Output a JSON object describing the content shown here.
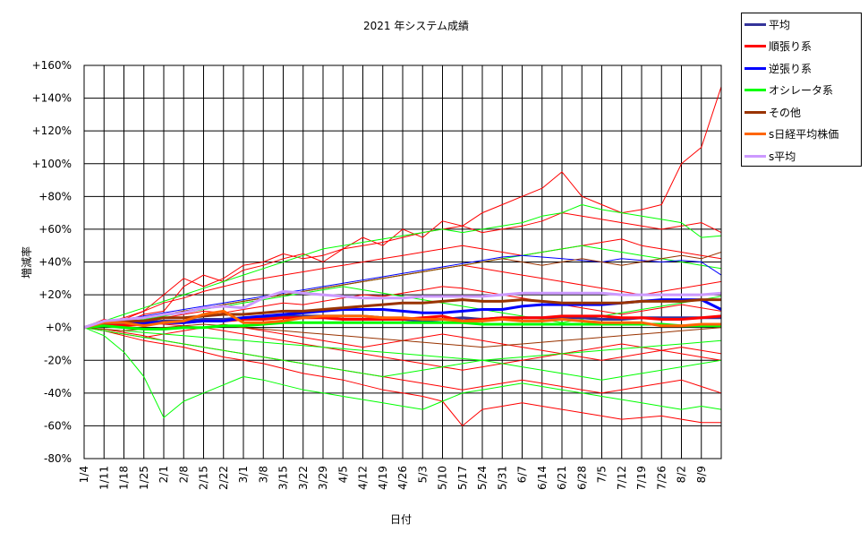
{
  "chart_data": {
    "type": "line",
    "title": "2021 年システム成績",
    "xlabel": "日付",
    "ylabel": "増減率",
    "ylim": [
      -80,
      160
    ],
    "y_ticks": [
      "+160%",
      "+140%",
      "+120%",
      "+100%",
      "+80%",
      "+60%",
      "+40%",
      "+20%",
      "+0%",
      "-20%",
      "-40%",
      "-60%",
      "-80%"
    ],
    "x_tick_labels": [
      "1/4",
      "1/11",
      "1/18",
      "1/25",
      "2/1",
      "2/8",
      "2/15",
      "2/22",
      "3/1",
      "3/8",
      "3/15",
      "3/22",
      "3/29",
      "4/5",
      "4/12",
      "4/19",
      "4/26",
      "5/3",
      "5/10",
      "5/17",
      "5/24",
      "5/31",
      "6/7",
      "6/14",
      "6/21",
      "6/28",
      "7/5",
      "7/12",
      "7/19",
      "7/26",
      "8/2",
      "8/9"
    ],
    "grid": true,
    "legend_position": "right-top",
    "series": [
      {
        "name": "平均",
        "color": "#33339a",
        "key": true,
        "values": [
          0,
          2,
          3,
          3,
          4,
          4,
          5,
          5,
          6,
          6,
          7,
          7,
          7,
          7,
          7,
          6,
          5,
          4,
          5,
          6,
          5,
          6,
          6,
          6,
          6,
          6,
          5,
          5,
          6,
          6,
          6,
          6,
          6
        ]
      },
      {
        "name": "順張り系",
        "color": "#ff0000",
        "key": true,
        "values": [
          0,
          2,
          1,
          2,
          3,
          3,
          4,
          4,
          5,
          5,
          6,
          6,
          6,
          5,
          5,
          5,
          5,
          6,
          7,
          4,
          5,
          6,
          6,
          6,
          7,
          7,
          7,
          6,
          6,
          5,
          5,
          6,
          7
        ]
      },
      {
        "name": "逆張り系",
        "color": "#0000ff",
        "key": true,
        "values": [
          0,
          3,
          3,
          3,
          3,
          3,
          4,
          4,
          6,
          7,
          8,
          9,
          10,
          11,
          11,
          11,
          10,
          9,
          9,
          10,
          11,
          11,
          13,
          14,
          14,
          14,
          14,
          15,
          16,
          17,
          17,
          17,
          11
        ]
      },
      {
        "name": "オシレータ系",
        "color": "#00ff00",
        "key": true,
        "values": [
          0,
          1,
          0,
          -1,
          -1,
          0,
          0,
          1,
          1,
          2,
          3,
          3,
          3,
          3,
          3,
          3,
          3,
          3,
          3,
          3,
          2,
          2,
          2,
          2,
          2,
          2,
          2,
          2,
          2,
          2,
          1,
          1,
          1
        ]
      },
      {
        "name": "その他",
        "color": "#993300",
        "key": true,
        "values": [
          0,
          4,
          4,
          4,
          6,
          6,
          7,
          8,
          8,
          9,
          10,
          10,
          11,
          12,
          13,
          14,
          15,
          15,
          16,
          17,
          16,
          16,
          17,
          16,
          15,
          15,
          15,
          15,
          16,
          16,
          16,
          17,
          17
        ]
      },
      {
        "name": "s日経平均株価",
        "color": "#ff6600",
        "key": true,
        "values": [
          0,
          3,
          3,
          1,
          3,
          4,
          8,
          10,
          3,
          3,
          4,
          6,
          7,
          7,
          7,
          6,
          6,
          5,
          5,
          4,
          4,
          5,
          4,
          4,
          5,
          4,
          3,
          3,
          3,
          1,
          1,
          2,
          2
        ]
      },
      {
        "name": "s平均",
        "color": "#cc99ff",
        "key": true,
        "values": [
          0,
          4,
          5,
          6,
          8,
          9,
          12,
          13,
          12,
          18,
          22,
          21,
          20,
          19,
          18,
          18,
          18,
          19,
          19,
          19,
          19,
          20,
          21,
          21,
          21,
          21,
          21,
          20,
          20,
          20,
          20,
          20,
          21
        ]
      },
      {
        "color": "#ff0000",
        "values": [
          0,
          5,
          3,
          8,
          10,
          25,
          32,
          28,
          35,
          38,
          42,
          45,
          40,
          48,
          55,
          50,
          60,
          55,
          65,
          62,
          70,
          75,
          80,
          85,
          95,
          80,
          75,
          70,
          72,
          75,
          100,
          110,
          147
        ]
      },
      {
        "color": "#ff0000",
        "values": [
          0,
          2,
          5,
          10,
          20,
          30,
          25,
          30,
          38,
          40,
          45,
          42,
          44,
          48,
          50,
          52,
          55,
          58,
          60,
          62,
          58,
          60,
          62,
          65,
          70,
          68,
          66,
          64,
          62,
          60,
          62,
          64,
          58
        ]
      },
      {
        "color": "#ff0000",
        "values": [
          0,
          3,
          6,
          10,
          15,
          18,
          22,
          25,
          28,
          30,
          32,
          34,
          36,
          38,
          40,
          42,
          44,
          46,
          48,
          50,
          48,
          46,
          44,
          46,
          48,
          50,
          52,
          54,
          50,
          48,
          46,
          44,
          42
        ]
      },
      {
        "color": "#ff0000",
        "values": [
          0,
          -2,
          -5,
          -8,
          -10,
          -12,
          -15,
          -18,
          -20,
          -22,
          -25,
          -28,
          -30,
          -32,
          -35,
          -38,
          -40,
          -42,
          -45,
          -60,
          -50,
          -48,
          -46,
          -48,
          -50,
          -52,
          -54,
          -56,
          -55,
          -54,
          -56,
          -58,
          -58
        ]
      },
      {
        "color": "#ff0000",
        "values": [
          0,
          -1,
          -3,
          -5,
          -8,
          -10,
          -12,
          -14,
          -16,
          -18,
          -20,
          -22,
          -24,
          -26,
          -28,
          -30,
          -32,
          -34,
          -36,
          -38,
          -36,
          -34,
          -32,
          -34,
          -36,
          -38,
          -40,
          -38,
          -36,
          -34,
          -32,
          -36,
          -40
        ]
      },
      {
        "color": "#ff0000",
        "values": [
          0,
          2,
          4,
          6,
          8,
          10,
          12,
          14,
          16,
          18,
          20,
          22,
          24,
          26,
          28,
          30,
          32,
          34,
          36,
          38,
          36,
          34,
          32,
          30,
          28,
          26,
          24,
          22,
          20,
          22,
          24,
          26,
          28
        ]
      },
      {
        "color": "#ff0000",
        "values": [
          0,
          1,
          2,
          3,
          2,
          1,
          0,
          -2,
          -4,
          -6,
          -8,
          -10,
          -12,
          -14,
          -16,
          -18,
          -20,
          -22,
          -24,
          -26,
          -24,
          -22,
          -20,
          -18,
          -16,
          -14,
          -12,
          -10,
          -12,
          -14,
          -16,
          -18,
          -20
        ]
      },
      {
        "color": "#ff0000",
        "values": [
          0,
          3,
          5,
          4,
          6,
          8,
          10,
          9,
          11,
          13,
          15,
          14,
          16,
          18,
          20,
          19,
          21,
          23,
          25,
          24,
          22,
          20,
          18,
          16,
          14,
          12,
          10,
          8,
          10,
          12,
          14,
          12,
          10
        ]
      },
      {
        "color": "#ff0000",
        "values": [
          0,
          -2,
          -4,
          -6,
          -4,
          -2,
          0,
          2,
          0,
          -2,
          -4,
          -6,
          -8,
          -10,
          -12,
          -10,
          -8,
          -6,
          -4,
          -6,
          -8,
          -10,
          -12,
          -14,
          -16,
          -18,
          -20,
          -18,
          -16,
          -14,
          -12,
          -14,
          -16
        ]
      },
      {
        "color": "#00ff00",
        "values": [
          0,
          -5,
          -15,
          -30,
          -55,
          -45,
          -40,
          -35,
          -30,
          -32,
          -35,
          -38,
          -40,
          -42,
          -44,
          -46,
          -48,
          -50,
          -45,
          -40,
          -38,
          -36,
          -34,
          -36,
          -38,
          -40,
          -42,
          -44,
          -46,
          -48,
          -50,
          -48,
          -50
        ]
      },
      {
        "color": "#00ff00",
        "values": [
          0,
          4,
          8,
          12,
          16,
          20,
          24,
          28,
          32,
          36,
          40,
          44,
          48,
          50,
          52,
          54,
          56,
          58,
          60,
          58,
          60,
          62,
          64,
          68,
          70,
          75,
          72,
          70,
          68,
          66,
          64,
          55,
          56
        ]
      },
      {
        "color": "#00ff00",
        "values": [
          0,
          2,
          4,
          6,
          8,
          10,
          12,
          14,
          16,
          18,
          20,
          22,
          24,
          26,
          28,
          30,
          32,
          34,
          36,
          38,
          40,
          42,
          44,
          46,
          48,
          50,
          48,
          46,
          44,
          42,
          40,
          38,
          36
        ]
      },
      {
        "color": "#00ff00",
        "values": [
          0,
          -2,
          -4,
          -6,
          -8,
          -10,
          -12,
          -14,
          -16,
          -18,
          -20,
          -22,
          -24,
          -26,
          -28,
          -30,
          -28,
          -26,
          -24,
          -22,
          -20,
          -22,
          -24,
          -26,
          -28,
          -30,
          -32,
          -30,
          -28,
          -26,
          -24,
          -22,
          -20
        ]
      },
      {
        "color": "#00ff00",
        "values": [
          0,
          1,
          3,
          5,
          7,
          9,
          11,
          13,
          15,
          17,
          19,
          21,
          23,
          25,
          23,
          21,
          19,
          17,
          15,
          13,
          11,
          9,
          7,
          5,
          3,
          5,
          7,
          9,
          11,
          13,
          15,
          17,
          19
        ]
      },
      {
        "color": "#00ff00",
        "values": [
          0,
          -1,
          -2,
          -3,
          -4,
          -5,
          -6,
          -7,
          -8,
          -9,
          -10,
          -11,
          -12,
          -13,
          -14,
          -15,
          -16,
          -17,
          -18,
          -19,
          -20,
          -19,
          -18,
          -17,
          -16,
          -15,
          -14,
          -13,
          -12,
          -11,
          -10,
          -9,
          -8
        ]
      },
      {
        "color": "#0000ff",
        "values": [
          0,
          3,
          5,
          7,
          9,
          11,
          13,
          15,
          17,
          19,
          21,
          23,
          25,
          27,
          29,
          31,
          33,
          35,
          37,
          39,
          41,
          43,
          44,
          43,
          42,
          41,
          40,
          42,
          41,
          40,
          41,
          40,
          32
        ]
      },
      {
        "color": "#993300",
        "values": [
          0,
          2,
          4,
          6,
          8,
          10,
          12,
          14,
          16,
          18,
          20,
          22,
          24,
          26,
          28,
          30,
          32,
          34,
          36,
          38,
          40,
          42,
          40,
          38,
          40,
          42,
          40,
          38,
          40,
          42,
          44,
          42,
          46
        ]
      },
      {
        "color": "#993300",
        "values": [
          0,
          -1,
          -2,
          -1,
          0,
          1,
          2,
          1,
          0,
          -1,
          -2,
          -3,
          -4,
          -5,
          -6,
          -7,
          -8,
          -9,
          -10,
          -11,
          -12,
          -11,
          -10,
          -9,
          -8,
          -7,
          -6,
          -5,
          -4,
          -3,
          -2,
          -1,
          0
        ]
      }
    ]
  }
}
